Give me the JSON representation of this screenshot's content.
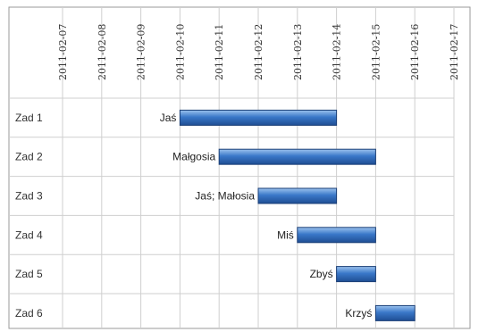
{
  "chart_data": {
    "type": "bar",
    "orientation": "horizontal",
    "x_axis": {
      "type": "date",
      "ticks": [
        "2011-02-07",
        "2011-02-08",
        "2011-02-09",
        "2011-02-10",
        "2011-02-11",
        "2011-02-12",
        "2011-02-13",
        "2011-02-14",
        "2011-02-15",
        "2011-02-16",
        "2011-02-17"
      ],
      "range": [
        "2011-02-07",
        "2011-02-17"
      ],
      "tick_label_position": "top",
      "tick_label_rotation": "vertical"
    },
    "categories": [
      "Zad 1",
      "Zad 2",
      "Zad 3",
      "Zad 4",
      "Zad 5",
      "Zad 6"
    ],
    "tasks": [
      {
        "category": "Zad 1",
        "label": "Jaś",
        "start": "2011-02-10",
        "end": "2011-02-14"
      },
      {
        "category": "Zad 2",
        "label": "Małgosia",
        "start": "2011-02-11",
        "end": "2011-02-15"
      },
      {
        "category": "Zad 3",
        "label": "Jaś; Małosia",
        "start": "2011-02-12",
        "end": "2011-02-14"
      },
      {
        "category": "Zad 4",
        "label": "Miś",
        "start": "2011-02-13",
        "end": "2011-02-15"
      },
      {
        "category": "Zad 5",
        "label": "Zbyś",
        "start": "2011-02-14",
        "end": "2011-02-15"
      },
      {
        "category": "Zad 6",
        "label": "Krzyś",
        "start": "2011-02-15",
        "end": "2011-02-16"
      }
    ],
    "grid": true,
    "legend": "none",
    "colors": {
      "bar_top": "#9cc3ee",
      "bar_mid": "#3a78c9",
      "bar_bottom": "#1f4e93",
      "bar_border": "#1b3f77",
      "grid": "#cfcfcf",
      "frame": "#9a9a9a"
    }
  }
}
